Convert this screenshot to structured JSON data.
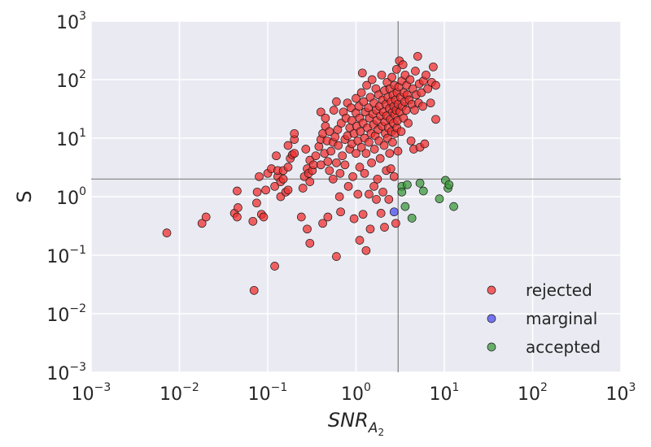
{
  "chart_data": {
    "type": "scatter",
    "title": "",
    "xlabel": {
      "base": "SNR",
      "sub": "A",
      "subsub": "2"
    },
    "ylabel": "S",
    "xscale": "log",
    "yscale": "log",
    "xlim": [
      0.001,
      1000
    ],
    "ylim": [
      0.001,
      1000
    ],
    "grid": true,
    "background": "#eaeaf2",
    "legend_position": "lower-right",
    "xticks": [
      {
        "base": "10",
        "exp": "−3",
        "value": 0.001
      },
      {
        "base": "10",
        "exp": "−2",
        "value": 0.01
      },
      {
        "base": "10",
        "exp": "−1",
        "value": 0.1
      },
      {
        "base": "10",
        "exp": "0",
        "value": 1
      },
      {
        "base": "10",
        "exp": "1",
        "value": 10
      },
      {
        "base": "10",
        "exp": "2",
        "value": 100
      },
      {
        "base": "10",
        "exp": "3",
        "value": 1000
      }
    ],
    "yticks": [
      {
        "base": "10",
        "exp": "−3",
        "value": 0.001
      },
      {
        "base": "10",
        "exp": "−2",
        "value": 0.01
      },
      {
        "base": "10",
        "exp": "−1",
        "value": 0.1
      },
      {
        "base": "10",
        "exp": "0",
        "value": 1
      },
      {
        "base": "10",
        "exp": "1",
        "value": 10
      },
      {
        "base": "10",
        "exp": "2",
        "value": 100
      },
      {
        "base": "10",
        "exp": "3",
        "value": 1000
      }
    ],
    "reference_lines": {
      "x": 3.0,
      "y": 2.0
    },
    "series": [
      {
        "name": "rejected",
        "color": "#f03030",
        "points": [
          [
            0.0072,
            0.24
          ],
          [
            0.018,
            0.35
          ],
          [
            0.02,
            0.45
          ],
          [
            0.042,
            0.52
          ],
          [
            0.045,
            0.45
          ],
          [
            0.046,
            0.65
          ],
          [
            0.045,
            1.25
          ],
          [
            0.068,
            0.38
          ],
          [
            0.07,
            0.025
          ],
          [
            0.075,
            0.78
          ],
          [
            0.076,
            1.2
          ],
          [
            0.08,
            2.2
          ],
          [
            0.085,
            0.5
          ],
          [
            0.09,
            0.45
          ],
          [
            0.095,
            1.3
          ],
          [
            0.1,
            2.5
          ],
          [
            0.11,
            3.0
          ],
          [
            0.12,
            0.065
          ],
          [
            0.12,
            1.5
          ],
          [
            0.125,
            5.0
          ],
          [
            0.13,
            2.2
          ],
          [
            0.13,
            2.8
          ],
          [
            0.14,
            1.8
          ],
          [
            0.14,
            1.0
          ],
          [
            0.15,
            2.0
          ],
          [
            0.15,
            2.8
          ],
          [
            0.16,
            1.2
          ],
          [
            0.17,
            1.3
          ],
          [
            0.17,
            7.5
          ],
          [
            0.17,
            3.2
          ],
          [
            0.18,
            4.5
          ],
          [
            0.19,
            5.2
          ],
          [
            0.2,
            9.5
          ],
          [
            0.2,
            5.5
          ],
          [
            0.2,
            12.0
          ],
          [
            0.24,
            0.45
          ],
          [
            0.25,
            1.4
          ],
          [
            0.26,
            2.2
          ],
          [
            0.27,
            6.5
          ],
          [
            0.28,
            0.28
          ],
          [
            0.28,
            3.0
          ],
          [
            0.29,
            2.5
          ],
          [
            0.3,
            0.16
          ],
          [
            0.3,
            1.8
          ],
          [
            0.3,
            4.2
          ],
          [
            0.32,
            2.8
          ],
          [
            0.33,
            3.5
          ],
          [
            0.35,
            5.0
          ],
          [
            0.38,
            7.2
          ],
          [
            0.4,
            9.5
          ],
          [
            0.4,
            28.0
          ],
          [
            0.4,
            3.5
          ],
          [
            0.42,
            0.35
          ],
          [
            0.42,
            12.0
          ],
          [
            0.44,
            5.5
          ],
          [
            0.45,
            16.0
          ],
          [
            0.45,
            22.0
          ],
          [
            0.47,
            9.0
          ],
          [
            0.48,
            4.0
          ],
          [
            0.48,
            0.45
          ],
          [
            0.5,
            2.8
          ],
          [
            0.5,
            13.0
          ],
          [
            0.52,
            6.0
          ],
          [
            0.55,
            8.5
          ],
          [
            0.55,
            2.0
          ],
          [
            0.56,
            30.0
          ],
          [
            0.58,
            10.5
          ],
          [
            0.6,
            0.095
          ],
          [
            0.6,
            42.0
          ],
          [
            0.6,
            3.8
          ],
          [
            0.62,
            14.0
          ],
          [
            0.63,
            7.5
          ],
          [
            0.65,
            1.0
          ],
          [
            0.66,
            2.5
          ],
          [
            0.67,
            0.55
          ],
          [
            0.68,
            18.0
          ],
          [
            0.7,
            5.0
          ],
          [
            0.72,
            28.0
          ],
          [
            0.75,
            9.5
          ],
          [
            0.75,
            3.5
          ],
          [
            0.77,
            22.0
          ],
          [
            0.8,
            11.0
          ],
          [
            0.8,
            40.0
          ],
          [
            0.82,
            1.5
          ],
          [
            0.85,
            15.0
          ],
          [
            0.85,
            6.5
          ],
          [
            0.88,
            33.0
          ],
          [
            0.9,
            8.0
          ],
          [
            0.9,
            20.0
          ],
          [
            0.92,
            2.2
          ],
          [
            0.95,
            12.0
          ],
          [
            0.95,
            0.42
          ],
          [
            1.0,
            48.0
          ],
          [
            1.0,
            5.5
          ],
          [
            1.0,
            27.0
          ],
          [
            1.02,
            16.0
          ],
          [
            1.05,
            1.1
          ],
          [
            1.05,
            9.0
          ],
          [
            1.08,
            35.0
          ],
          [
            1.1,
            0.18
          ],
          [
            1.1,
            3.2
          ],
          [
            1.1,
            22.0
          ],
          [
            1.12,
            13.0
          ],
          [
            1.15,
            60.0
          ],
          [
            1.15,
            7.0
          ],
          [
            1.18,
            130.0
          ],
          [
            1.2,
            18.0
          ],
          [
            1.2,
            0.5
          ],
          [
            1.22,
            42.0
          ],
          [
            1.25,
            10.0
          ],
          [
            1.25,
            2.5
          ],
          [
            1.28,
            28.0
          ],
          [
            1.3,
            0.12
          ],
          [
            1.3,
            5.5
          ],
          [
            1.32,
            80.0
          ],
          [
            1.35,
            15.0
          ],
          [
            1.38,
            33.0
          ],
          [
            1.4,
            1.1
          ],
          [
            1.4,
            8.5
          ],
          [
            1.42,
            22.0
          ],
          [
            1.45,
            50.0
          ],
          [
            1.45,
            0.28
          ],
          [
            1.48,
            12.0
          ],
          [
            1.5,
            3.8
          ],
          [
            1.52,
            100.0
          ],
          [
            1.55,
            26.0
          ],
          [
            1.58,
            17.0
          ],
          [
            1.6,
            1.5
          ],
          [
            1.6,
            40.0
          ],
          [
            1.62,
            6.5
          ],
          [
            1.65,
            11.0
          ],
          [
            1.68,
            70.0
          ],
          [
            1.7,
            0.9
          ],
          [
            1.7,
            30.0
          ],
          [
            1.72,
            20.0
          ],
          [
            1.75,
            2.0
          ],
          [
            1.78,
            14.0
          ],
          [
            1.8,
            55.0
          ],
          [
            1.82,
            9.0
          ],
          [
            1.85,
            35.0
          ],
          [
            1.88,
            4.5
          ],
          [
            1.9,
            24.0
          ],
          [
            1.92,
            0.52
          ],
          [
            1.95,
            120.0
          ],
          [
            1.98,
            16.0
          ],
          [
            2.0,
            45.0
          ],
          [
            2.02,
            1.2
          ],
          [
            2.05,
            28.0
          ],
          [
            2.08,
            7.5
          ],
          [
            2.1,
            0.3
          ],
          [
            2.1,
            65.0
          ],
          [
            2.12,
            19.0
          ],
          [
            2.15,
            12.0
          ],
          [
            2.18,
            38.0
          ],
          [
            2.2,
            2.8
          ],
          [
            2.22,
            24.0
          ],
          [
            2.25,
            90.0
          ],
          [
            2.28,
            10.0
          ],
          [
            2.3,
            50.0
          ],
          [
            2.32,
            15.0
          ],
          [
            2.35,
            0.9
          ],
          [
            2.38,
            32.0
          ],
          [
            2.4,
            5.5
          ],
          [
            2.42,
            70.0
          ],
          [
            2.45,
            21.0
          ],
          [
            2.48,
            3.0
          ],
          [
            2.5,
            42.0
          ],
          [
            2.52,
            13.0
          ],
          [
            2.55,
            110.0
          ],
          [
            2.58,
            28.0
          ],
          [
            2.6,
            8.5
          ],
          [
            2.62,
            55.0
          ],
          [
            2.65,
            18.0
          ],
          [
            2.68,
            35.0
          ],
          [
            2.7,
            2.2
          ],
          [
            2.72,
            80.0
          ],
          [
            2.75,
            25.0
          ],
          [
            2.78,
            12.0
          ],
          [
            2.8,
            45.0
          ],
          [
            2.82,
            0.35
          ],
          [
            2.85,
            30.0
          ],
          [
            2.88,
            150.0
          ],
          [
            2.9,
            15.0
          ],
          [
            2.92,
            60.0
          ],
          [
            2.95,
            20.0
          ],
          [
            2.98,
            6.0
          ],
          [
            3.0,
            38.0
          ],
          [
            3.05,
            75.0
          ],
          [
            3.1,
            210.0
          ],
          [
            3.15,
            28.0
          ],
          [
            3.2,
            50.0
          ],
          [
            3.25,
            13.0
          ],
          [
            3.3,
            95.0
          ],
          [
            3.35,
            35.0
          ],
          [
            3.4,
            180.0
          ],
          [
            3.45,
            22.0
          ],
          [
            3.5,
            60.0
          ],
          [
            3.55,
            42.0
          ],
          [
            3.6,
            120.0
          ],
          [
            3.7,
            30.0
          ],
          [
            3.75,
            80.0
          ],
          [
            3.8,
            55.0
          ],
          [
            3.9,
            18.0
          ],
          [
            4.0,
            45.0
          ],
          [
            4.1,
            100.0
          ],
          [
            4.2,
            9.0
          ],
          [
            4.3,
            38.0
          ],
          [
            4.4,
            70.0
          ],
          [
            4.5,
            6.5
          ],
          [
            4.6,
            30.0
          ],
          [
            4.7,
            140.0
          ],
          [
            4.8,
            55.0
          ],
          [
            5.0,
            250.0
          ],
          [
            5.1,
            40.0
          ],
          [
            5.2,
            85.0
          ],
          [
            5.3,
            7.0
          ],
          [
            5.5,
            60.0
          ],
          [
            5.7,
            35.0
          ],
          [
            5.8,
            95.0
          ],
          [
            6.0,
            8.0
          ],
          [
            6.2,
            120.0
          ],
          [
            6.5,
            70.0
          ],
          [
            7.0,
            40.0
          ],
          [
            7.2,
            90.0
          ],
          [
            7.5,
            165.0
          ],
          [
            8.0,
            80.0
          ],
          [
            8.0,
            21.0
          ]
        ]
      },
      {
        "name": "marginal",
        "color": "#4c4cf0",
        "points": [
          [
            2.7,
            0.55
          ]
        ]
      },
      {
        "name": "accepted",
        "color": "#3c9a3c",
        "points": [
          [
            3.3,
            1.5
          ],
          [
            3.3,
            1.2
          ],
          [
            3.6,
            0.68
          ],
          [
            3.8,
            1.6
          ],
          [
            4.3,
            0.43
          ],
          [
            5.3,
            1.7
          ],
          [
            5.8,
            1.25
          ],
          [
            8.8,
            0.92
          ],
          [
            10.3,
            1.9
          ],
          [
            11.0,
            1.4
          ],
          [
            11.3,
            1.6
          ],
          [
            12.8,
            0.68
          ]
        ]
      }
    ]
  }
}
